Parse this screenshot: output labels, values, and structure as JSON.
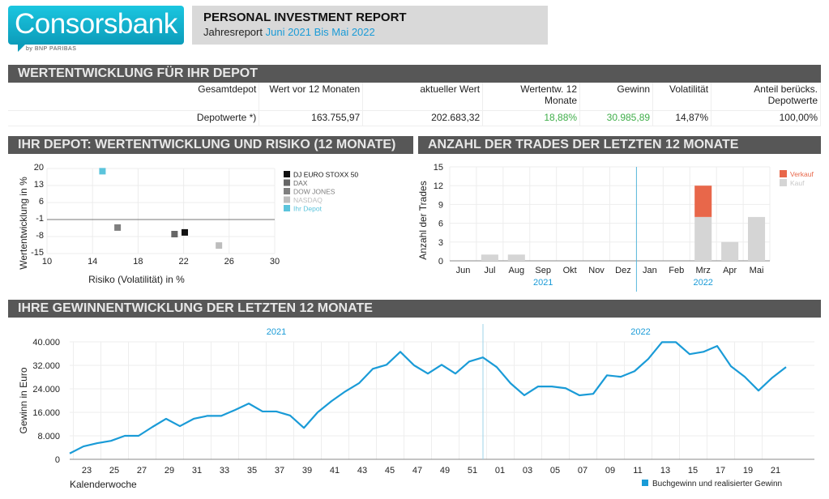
{
  "brand": {
    "logo_text": "Consorsbank !",
    "logo_sub": "by BNP PARIBAS",
    "colors": {
      "logo": "#12b3d2",
      "accent": "#1a9bd7",
      "section_bar": "#575757",
      "positive": "#3fae49",
      "sell": "#e8674a",
      "buy": "#d5d5d5"
    }
  },
  "report": {
    "title": "PERSONAL INVESTMENT REPORT",
    "subtitle_prefix": "Jahresreport",
    "period": "Juni 2021 Bis Mai 2022"
  },
  "depot_section": {
    "title": "WERTENTWICKLUNG FÜR IHR DEPOT",
    "headers": [
      "Gesamtdepot",
      "Wert vor 12 Monaten",
      "aktueller Wert",
      "Wertentw. 12 Monate",
      "Gewinn",
      "Volatilität",
      "Anteil berücks. Depotwerte"
    ],
    "row": [
      "Depotwerte *)",
      "163.755,97",
      "202.683,32",
      "18,88%",
      "30.985,89",
      "14,87%",
      "100,00%"
    ]
  },
  "risk_section": {
    "title": "IHR DEPOT: WERTENTWICKLUNG UND RISIKO (12 MONATE)"
  },
  "trades_section": {
    "title": "ANZAHL DER TRADES DER LETZTEN 12 MONATE"
  },
  "profit_section": {
    "title": "IHRE GEWINNENTWICKLUNG DER LETZTEN 12 MONATE"
  },
  "chart_data": [
    {
      "type": "scatter",
      "title": "IHR DEPOT: WERTENTWICKLUNG UND RISIKO (12 MONATE)",
      "xlabel": "Risiko (Volatilität) in %",
      "ylabel": "Wertentwicklung in %",
      "xlim": [
        10,
        30
      ],
      "ylim": [
        -15,
        20
      ],
      "xticks": [
        "10",
        "14",
        "18",
        "22",
        "26",
        "30"
      ],
      "yticks": [
        "20",
        "13",
        "6",
        "-1",
        "-8",
        "-15"
      ],
      "zero_line": -1,
      "grid": true,
      "legend_position": "right",
      "series": [
        {
          "name": "DJ EURO STOXX 50",
          "color": "#111111",
          "x": 22.1,
          "y": -6.3
        },
        {
          "name": "DAX",
          "color": "#666666",
          "x": 21.2,
          "y": -7.0
        },
        {
          "name": "DOW JONES",
          "color": "#7f7f7f",
          "x": 16.2,
          "y": -4.3
        },
        {
          "name": "NASDAQ",
          "color": "#bdbdbd",
          "x": 25.1,
          "y": -11.7
        },
        {
          "name": "Ihr Depot",
          "color": "#5bc4dc",
          "x": 14.87,
          "y": 18.88
        }
      ]
    },
    {
      "type": "bar",
      "stacked": true,
      "title": "ANZAHL DER TRADES DER LETZTEN 12 MONATE",
      "ylabel": "Anzahl der Trades",
      "ylim": [
        0,
        15
      ],
      "yticks": [
        "0",
        "3",
        "6",
        "9",
        "12",
        "15"
      ],
      "categories": [
        "Jun",
        "Jul",
        "Aug",
        "Sep",
        "Okt",
        "Nov",
        "Dez",
        "Jan",
        "Feb",
        "Mrz",
        "Apr",
        "Mai"
      ],
      "year_labels": [
        {
          "label": "2021",
          "from": 0,
          "to": 6
        },
        {
          "label": "2022",
          "from": 7,
          "to": 11
        }
      ],
      "legend_position": "top-right",
      "series": [
        {
          "name": "Kauf",
          "color": "#d5d5d5",
          "values": [
            0,
            1,
            1,
            0,
            0,
            0,
            0,
            0,
            0,
            7,
            3,
            7
          ]
        },
        {
          "name": "Verkauf",
          "color": "#e8674a",
          "values": [
            0,
            0,
            0,
            0,
            0,
            0,
            0,
            0,
            0,
            5,
            0,
            0
          ]
        }
      ],
      "legend_order": [
        "Verkauf",
        "Kauf"
      ]
    },
    {
      "type": "line",
      "title": "IHRE GEWINNENTWICKLUNG DER LETZTEN 12 MONATE",
      "xlabel": "Kalenderwoche",
      "ylabel": "Gewinn in Euro",
      "ylim": [
        0,
        40000
      ],
      "yticks": [
        "0",
        "8.000",
        "16.000",
        "24.000",
        "32.000",
        "40.000"
      ],
      "xticks": [
        "23",
        "25",
        "27",
        "29",
        "31",
        "33",
        "35",
        "37",
        "39",
        "41",
        "43",
        "45",
        "47",
        "49",
        "51",
        "01",
        "03",
        "05",
        "07",
        "09",
        "11",
        "13",
        "15",
        "17",
        "19",
        "21"
      ],
      "year_labels": [
        "2021",
        "2022"
      ],
      "legend_position": "bottom-right",
      "series": [
        {
          "name": "Buchgewinn und realisierter Gewinn",
          "color": "#1a9bd7",
          "x": [
            "2021-22",
            "2021-23",
            "2021-24",
            "2021-25",
            "2021-26",
            "2021-27",
            "2021-28",
            "2021-29",
            "2021-30",
            "2021-31",
            "2021-32",
            "2021-33",
            "2021-34",
            "2021-35",
            "2021-36",
            "2021-37",
            "2021-38",
            "2021-39",
            "2021-40",
            "2021-41",
            "2021-42",
            "2021-43",
            "2021-44",
            "2021-45",
            "2021-46",
            "2021-47",
            "2021-48",
            "2021-49",
            "2021-50",
            "2021-51",
            "2021-52",
            "2022-01",
            "2022-02",
            "2022-03",
            "2022-04",
            "2022-05",
            "2022-06",
            "2022-07",
            "2022-08",
            "2022-09",
            "2022-10",
            "2022-11",
            "2022-12",
            "2022-13",
            "2022-14",
            "2022-15",
            "2022-16",
            "2022-17",
            "2022-18",
            "2022-19",
            "2022-20",
            "2022-21",
            "2022-22"
          ],
          "values": [
            2000,
            4400,
            5500,
            6300,
            8000,
            8000,
            11000,
            13800,
            11300,
            13800,
            14800,
            14800,
            16800,
            19000,
            16300,
            16300,
            14900,
            10700,
            16000,
            19800,
            23100,
            25900,
            30800,
            32200,
            36600,
            32000,
            29200,
            32200,
            29200,
            33300,
            34700,
            31400,
            25900,
            21800,
            24800,
            24800,
            24200,
            21800,
            22300,
            28600,
            28100,
            30000,
            34200,
            39900,
            39900,
            35800,
            36600,
            38600,
            31700,
            28100,
            23400,
            27800,
            31400
          ]
        }
      ]
    }
  ]
}
